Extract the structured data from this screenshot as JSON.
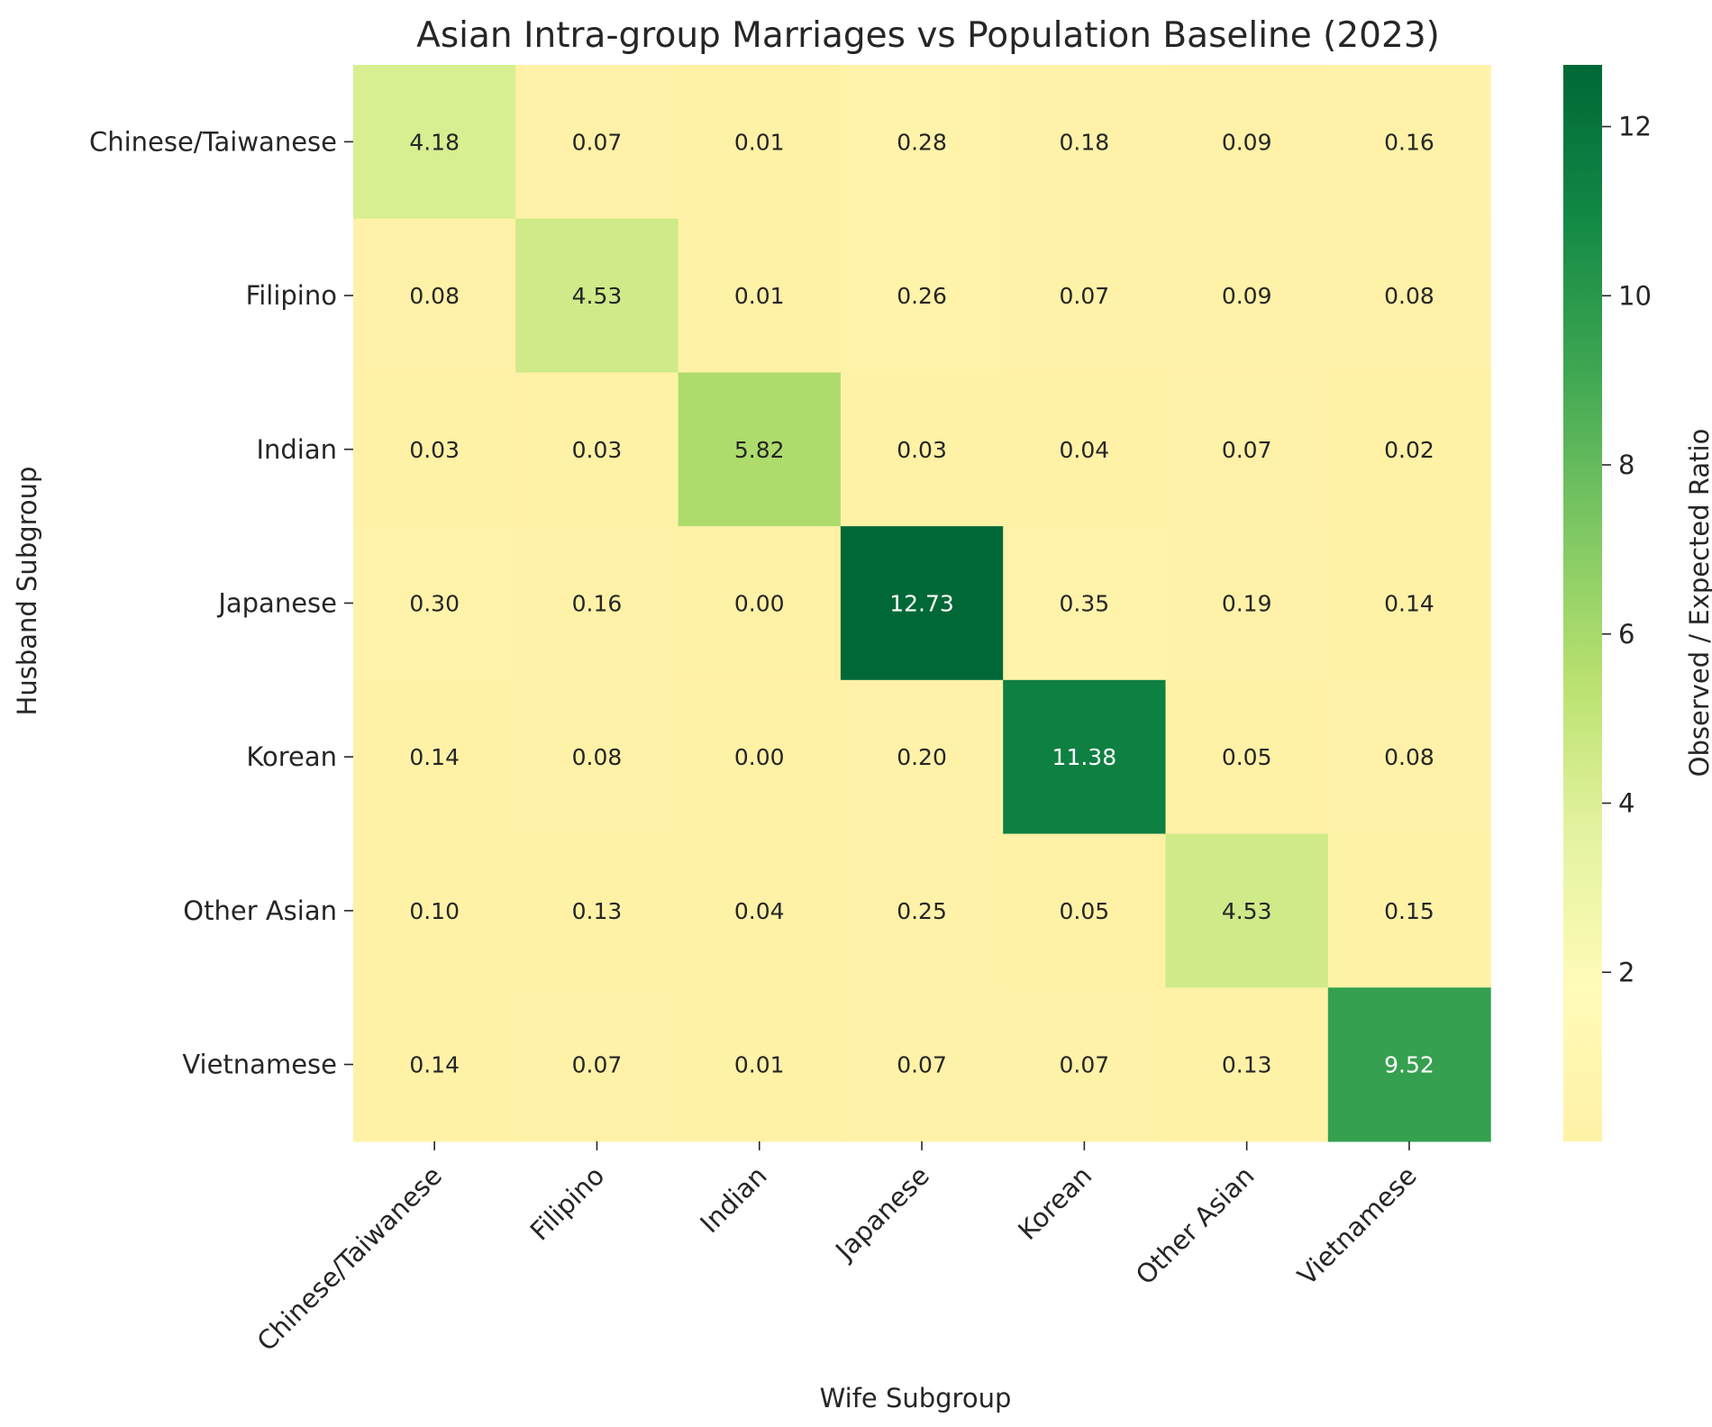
{
  "chart_data": {
    "type": "heatmap",
    "title": "Asian Intra-group Marriages vs Population Baseline (2023)",
    "xlabel": "Wife Subgroup",
    "ylabel": "Husband Subgroup",
    "x_categories": [
      "Chinese/Taiwanese",
      "Filipino",
      "Indian",
      "Japanese",
      "Korean",
      "Other Asian",
      "Vietnamese"
    ],
    "y_categories": [
      "Chinese/Taiwanese",
      "Filipino",
      "Indian",
      "Japanese",
      "Korean",
      "Other Asian",
      "Vietnamese"
    ],
    "values": [
      [
        4.18,
        0.07,
        0.01,
        0.28,
        0.18,
        0.09,
        0.16
      ],
      [
        0.08,
        4.53,
        0.01,
        0.26,
        0.07,
        0.09,
        0.08
      ],
      [
        0.03,
        0.03,
        5.82,
        0.03,
        0.04,
        0.07,
        0.02
      ],
      [
        0.3,
        0.16,
        0.0,
        12.73,
        0.35,
        0.19,
        0.14
      ],
      [
        0.14,
        0.08,
        0.0,
        0.2,
        11.38,
        0.05,
        0.08
      ],
      [
        0.1,
        0.13,
        0.04,
        0.25,
        0.05,
        4.53,
        0.15
      ],
      [
        0.14,
        0.07,
        0.01,
        0.07,
        0.07,
        0.13,
        9.52
      ]
    ],
    "cell_labels": [
      [
        "4.18",
        "0.07",
        "0.01",
        "0.28",
        "0.18",
        "0.09",
        "0.16"
      ],
      [
        "0.08",
        "4.53",
        "0.01",
        "0.26",
        "0.07",
        "0.09",
        "0.08"
      ],
      [
        "0.03",
        "0.03",
        "5.82",
        "0.03",
        "0.04",
        "0.07",
        "0.02"
      ],
      [
        "0.30",
        "0.16",
        "0.00",
        "12.73",
        "0.35",
        "0.19",
        "0.14"
      ],
      [
        "0.14",
        "0.08",
        "0.00",
        "0.20",
        "11.38",
        "0.05",
        "0.08"
      ],
      [
        "0.10",
        "0.13",
        "0.04",
        "0.25",
        "0.05",
        "4.53",
        "0.15"
      ],
      [
        "0.14",
        "0.07",
        "0.01",
        "0.07",
        "0.07",
        "0.13",
        "9.52"
      ]
    ],
    "colormap": "YlGn-like (light yellow to dark green)",
    "color_range": [
      0.0,
      12.73
    ],
    "colorbar": {
      "label": "Observed / Expected Ratio",
      "ticks": [
        2,
        4,
        6,
        8,
        10,
        12
      ],
      "tick_labels": [
        "2",
        "4",
        "6",
        "8",
        "10",
        "12"
      ]
    },
    "colors": {
      "stops": [
        "#fff1a6",
        "#fffbb8",
        "#e4f3a0",
        "#b9e16f",
        "#7dc763",
        "#3fa752",
        "#138945",
        "#006837"
      ],
      "text_dark": "#262626",
      "text_light": "#ffffff"
    }
  }
}
